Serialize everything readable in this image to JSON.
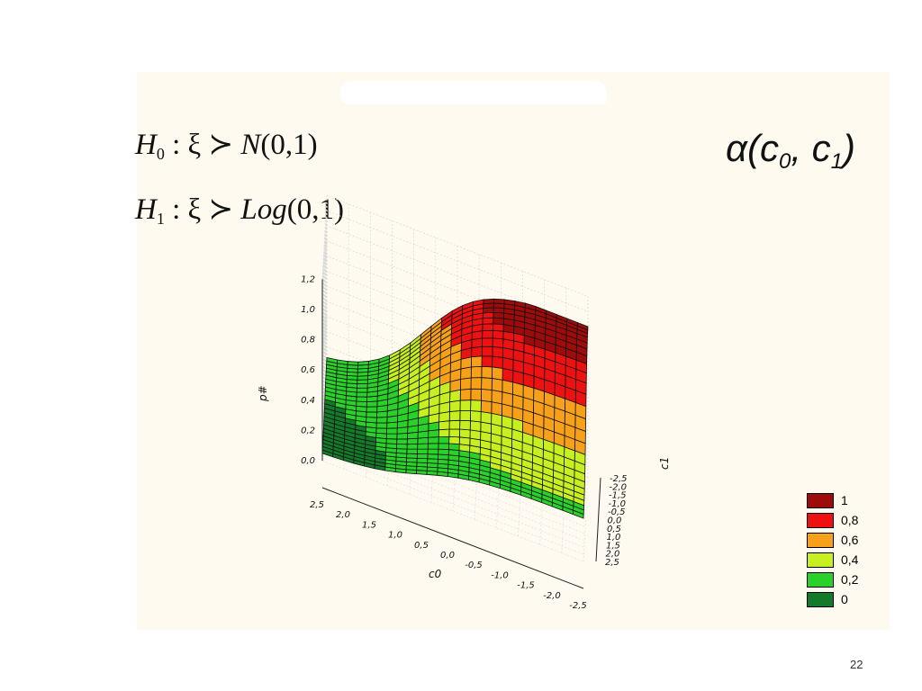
{
  "slide": {
    "page_number": "22"
  },
  "hypotheses": {
    "h0": {
      "H": "H",
      "sub": "0",
      "colon": " : ",
      "xi": "ξ",
      "rel": " ≻ ",
      "dist": "N",
      "args": "(0,1)"
    },
    "h1": {
      "H": "H",
      "sub": "1",
      "colon": " : ",
      "xi": "ξ",
      "rel": " ≻ ",
      "dist": "Log",
      "args": "(0,1)"
    }
  },
  "alpha_label": {
    "prefix": "α(c",
    "sub0": "0",
    "mid": ", c",
    "sub1": "1",
    "suffix": ")"
  },
  "colors": {
    "level_1": "#9e0b0b",
    "level_08": "#ee1111",
    "level_06": "#f7a11a",
    "level_04": "#c8f020",
    "level_02": "#2bd12b",
    "level_0": "#137a2a",
    "grid": "#000000"
  },
  "chart_data": {
    "type": "surface3d",
    "x_axis": {
      "label": "c0",
      "ticks": [
        "2,5",
        "2,0",
        "1,5",
        "1,0",
        "0,5",
        "0,0",
        "-0,5",
        "-1,0",
        "-1,5",
        "-2,0",
        "-2,5"
      ],
      "range": [
        2.5,
        -2.5
      ]
    },
    "y_axis": {
      "label": "c1",
      "ticks": [
        "-2,5",
        "-2,0",
        "-1,5",
        "-1,0",
        "-0,5",
        "0,0",
        "0,5",
        "1,0",
        "1,5",
        "2,0",
        "2,5"
      ],
      "range": [
        -2.5,
        2.5
      ]
    },
    "z_axis": {
      "label": "p#",
      "ticks": [
        "0,0",
        "0,2",
        "0,4",
        "0,6",
        "0,8",
        "1,0",
        "1,2"
      ],
      "range": [
        0,
        1.2
      ]
    },
    "grid": true,
    "grid_lines": 25,
    "description_values": {
      "min": 0.0,
      "max": 1.0
    },
    "legend": {
      "placement": "bottom-right",
      "entries": [
        {
          "label": "1",
          "color": "#9e0b0b"
        },
        {
          "label": "0,8",
          "color": "#ee1111"
        },
        {
          "label": "0,6",
          "color": "#f7a11a"
        },
        {
          "label": "0,4",
          "color": "#c8f020"
        },
        {
          "label": "0,2",
          "color": "#2bd12b"
        },
        {
          "label": "0",
          "color": "#137a2a"
        }
      ]
    }
  }
}
